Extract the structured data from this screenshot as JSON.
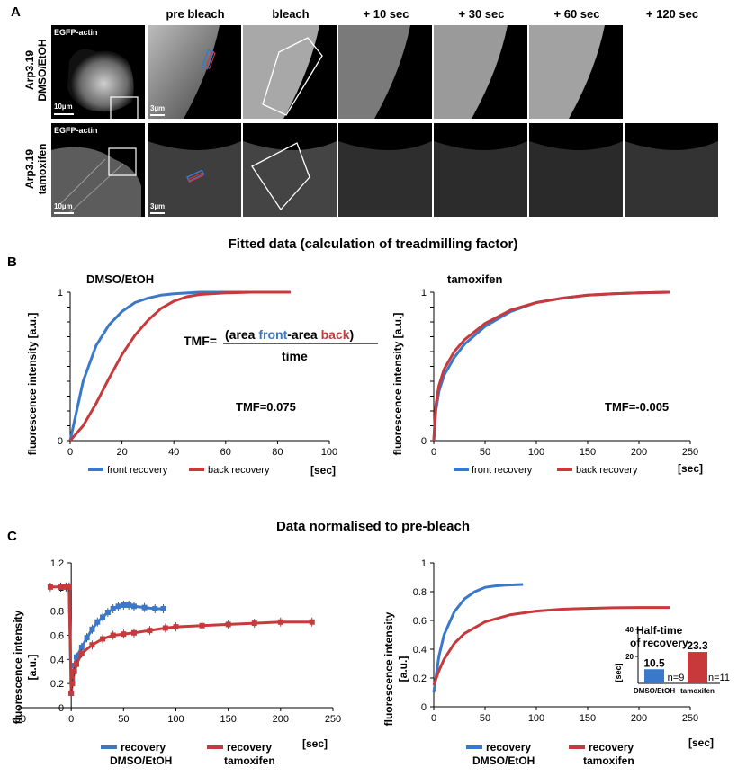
{
  "panel_letters": {
    "a": "A",
    "b": "B",
    "c": "C"
  },
  "panel_a": {
    "column_headers": [
      "pre bleach",
      "bleach",
      "+ 10 sec",
      "+ 30 sec",
      "+ 60 sec",
      "+ 120 sec"
    ],
    "row1_label_line1": "Arp3.19",
    "row1_label_line2": "DMSO/EtOH",
    "row2_label_line1": "Arp3.19",
    "row2_label_line2": "tamoxifen",
    "overview_label": "EGFP-actin",
    "overview_scale": "10µm",
    "zoom_scale": "3µm"
  },
  "panel_b": {
    "heading": "Fitted data (calculation of treadmilling factor)",
    "left_title": "DMSO/EtOH",
    "right_title": "tamoxifen",
    "formula_prefix": "TMF=",
    "formula_open": "(area ",
    "formula_front": "front",
    "formula_mid": "-area ",
    "formula_back": "back",
    "formula_close": ")",
    "formula_denominator": "time",
    "left_tmf": "TMF=0.075",
    "right_tmf": "TMF=-0.005",
    "ylabel": "fluorescence intensity [a.u.]",
    "xunit": "[sec]",
    "legend_front": "front recovery",
    "legend_back": "back recovery"
  },
  "panel_c": {
    "heading": "Data normalised to pre-bleach",
    "ylabel_line1": "fluorescence intensity",
    "ylabel_line2": "[a.u.]",
    "xunit": "[sec]",
    "legend_line1": "recovery",
    "legend_dmso": "DMSO/EtOH",
    "legend_tam": "tamoxifen",
    "inset_title_line1": "Half-time",
    "inset_title_line2": "of recovery",
    "inset_ylabel": "[sec]"
  },
  "colors": {
    "blue": "#3a78c9",
    "red": "#c8393b"
  },
  "chart_data": [
    {
      "type": "line",
      "title": "DMSO/EtOH",
      "xlabel": "[sec]",
      "ylabel": "fluorescence intensity [a.u.]",
      "xlim": [
        0,
        100
      ],
      "ylim": [
        0,
        1
      ],
      "xticks": [
        0,
        20,
        40,
        60,
        80,
        100
      ],
      "yticks": [
        0,
        0.1,
        0.2,
        0.3,
        0.4,
        0.5,
        0.6,
        0.7,
        0.8,
        0.9,
        1
      ],
      "series": [
        {
          "name": "front recovery",
          "x": [
            0,
            5,
            10,
            15,
            20,
            25,
            30,
            35,
            40,
            50,
            60,
            70,
            85
          ],
          "y": [
            0,
            0.4,
            0.64,
            0.78,
            0.87,
            0.93,
            0.96,
            0.98,
            0.99,
            1.0,
            1.0,
            1.0,
            1.0
          ]
        },
        {
          "name": "back recovery",
          "x": [
            0,
            5,
            10,
            15,
            20,
            25,
            30,
            35,
            40,
            45,
            50,
            60,
            70,
            85
          ],
          "y": [
            0,
            0.1,
            0.25,
            0.42,
            0.58,
            0.71,
            0.81,
            0.89,
            0.94,
            0.97,
            0.985,
            0.995,
            1.0,
            1.0
          ]
        }
      ]
    },
    {
      "type": "line",
      "title": "tamoxifen",
      "xlabel": "[sec]",
      "ylabel": "fluorescence intensity [a.u.]",
      "xlim": [
        0,
        250
      ],
      "ylim": [
        0,
        1
      ],
      "xticks": [
        0,
        50,
        100,
        150,
        200,
        250
      ],
      "yticks": [
        0,
        0.1,
        0.2,
        0.3,
        0.4,
        0.5,
        0.6,
        0.7,
        0.8,
        0.9,
        1
      ],
      "series": [
        {
          "name": "front recovery",
          "x": [
            0,
            2,
            5,
            10,
            20,
            30,
            50,
            75,
            100,
            125,
            150,
            175,
            200,
            230
          ],
          "y": [
            0,
            0.2,
            0.33,
            0.44,
            0.56,
            0.65,
            0.77,
            0.87,
            0.93,
            0.96,
            0.98,
            0.99,
            0.995,
            1.0
          ]
        },
        {
          "name": "back recovery",
          "x": [
            0,
            2,
            5,
            10,
            20,
            30,
            50,
            75,
            100,
            125,
            150,
            175,
            200,
            230
          ],
          "y": [
            0,
            0.24,
            0.37,
            0.48,
            0.6,
            0.68,
            0.79,
            0.88,
            0.93,
            0.96,
            0.98,
            0.99,
            0.995,
            1.0
          ]
        }
      ]
    },
    {
      "type": "line",
      "title": "Data normalised to pre-bleach",
      "xlabel": "[sec]",
      "ylabel": "fluorescence intensity [a.u.]",
      "xlim": [
        -50,
        250
      ],
      "ylim": [
        0,
        1.2
      ],
      "xticks": [
        -50,
        0,
        50,
        100,
        150,
        200,
        250
      ],
      "yticks": [
        0,
        0.2,
        0.4,
        0.6,
        0.8,
        1,
        1.2
      ],
      "series": [
        {
          "name": "recovery DMSO/EtOH",
          "x": [
            -10,
            -5,
            -2,
            0,
            1,
            3,
            5,
            10,
            15,
            20,
            25,
            30,
            35,
            40,
            45,
            50,
            55,
            60,
            70,
            80,
            88
          ],
          "y": [
            1,
            1,
            1,
            0.12,
            0.22,
            0.35,
            0.42,
            0.5,
            0.58,
            0.65,
            0.71,
            0.75,
            0.79,
            0.82,
            0.84,
            0.85,
            0.85,
            0.84,
            0.83,
            0.82,
            0.82
          ]
        },
        {
          "name": "recovery tamoxifen",
          "x": [
            -20,
            -10,
            -5,
            -2,
            0,
            1,
            3,
            5,
            10,
            20,
            30,
            40,
            50,
            60,
            75,
            90,
            100,
            125,
            150,
            175,
            200,
            230
          ],
          "y": [
            1,
            1,
            1,
            1,
            0.12,
            0.2,
            0.3,
            0.36,
            0.45,
            0.52,
            0.57,
            0.6,
            0.61,
            0.62,
            0.64,
            0.66,
            0.67,
            0.68,
            0.69,
            0.7,
            0.71,
            0.71
          ]
        }
      ]
    },
    {
      "type": "line",
      "title": "",
      "xlabel": "[sec]",
      "ylabel": "fluorescence intensity [a.u.]",
      "xlim": [
        0,
        250
      ],
      "ylim": [
        0,
        1
      ],
      "xticks": [
        0,
        50,
        100,
        150,
        200,
        250
      ],
      "yticks": [
        0,
        0.2,
        0.4,
        0.6,
        0.8,
        1
      ],
      "series": [
        {
          "name": "recovery DMSO/EtOH",
          "x": [
            0,
            5,
            10,
            20,
            30,
            40,
            50,
            60,
            70,
            87
          ],
          "y": [
            0.1,
            0.35,
            0.5,
            0.66,
            0.75,
            0.8,
            0.83,
            0.84,
            0.845,
            0.85
          ]
        },
        {
          "name": "recovery tamoxifen",
          "x": [
            0,
            5,
            10,
            20,
            30,
            50,
            75,
            100,
            125,
            150,
            175,
            200,
            230
          ],
          "y": [
            0.15,
            0.25,
            0.33,
            0.44,
            0.51,
            0.59,
            0.64,
            0.665,
            0.678,
            0.684,
            0.688,
            0.69,
            0.69
          ]
        }
      ]
    },
    {
      "type": "bar",
      "title": "Half-time of recovery",
      "ylabel": "[sec]",
      "ylim": [
        0,
        40
      ],
      "yticks": [
        0,
        20,
        40
      ],
      "categories": [
        "DMSO/EtOH",
        "tamoxifen"
      ],
      "values": [
        10.5,
        23.3
      ],
      "value_labels": [
        "10.5",
        "23.3"
      ],
      "n_labels": [
        "n=9",
        "n=11"
      ]
    }
  ]
}
